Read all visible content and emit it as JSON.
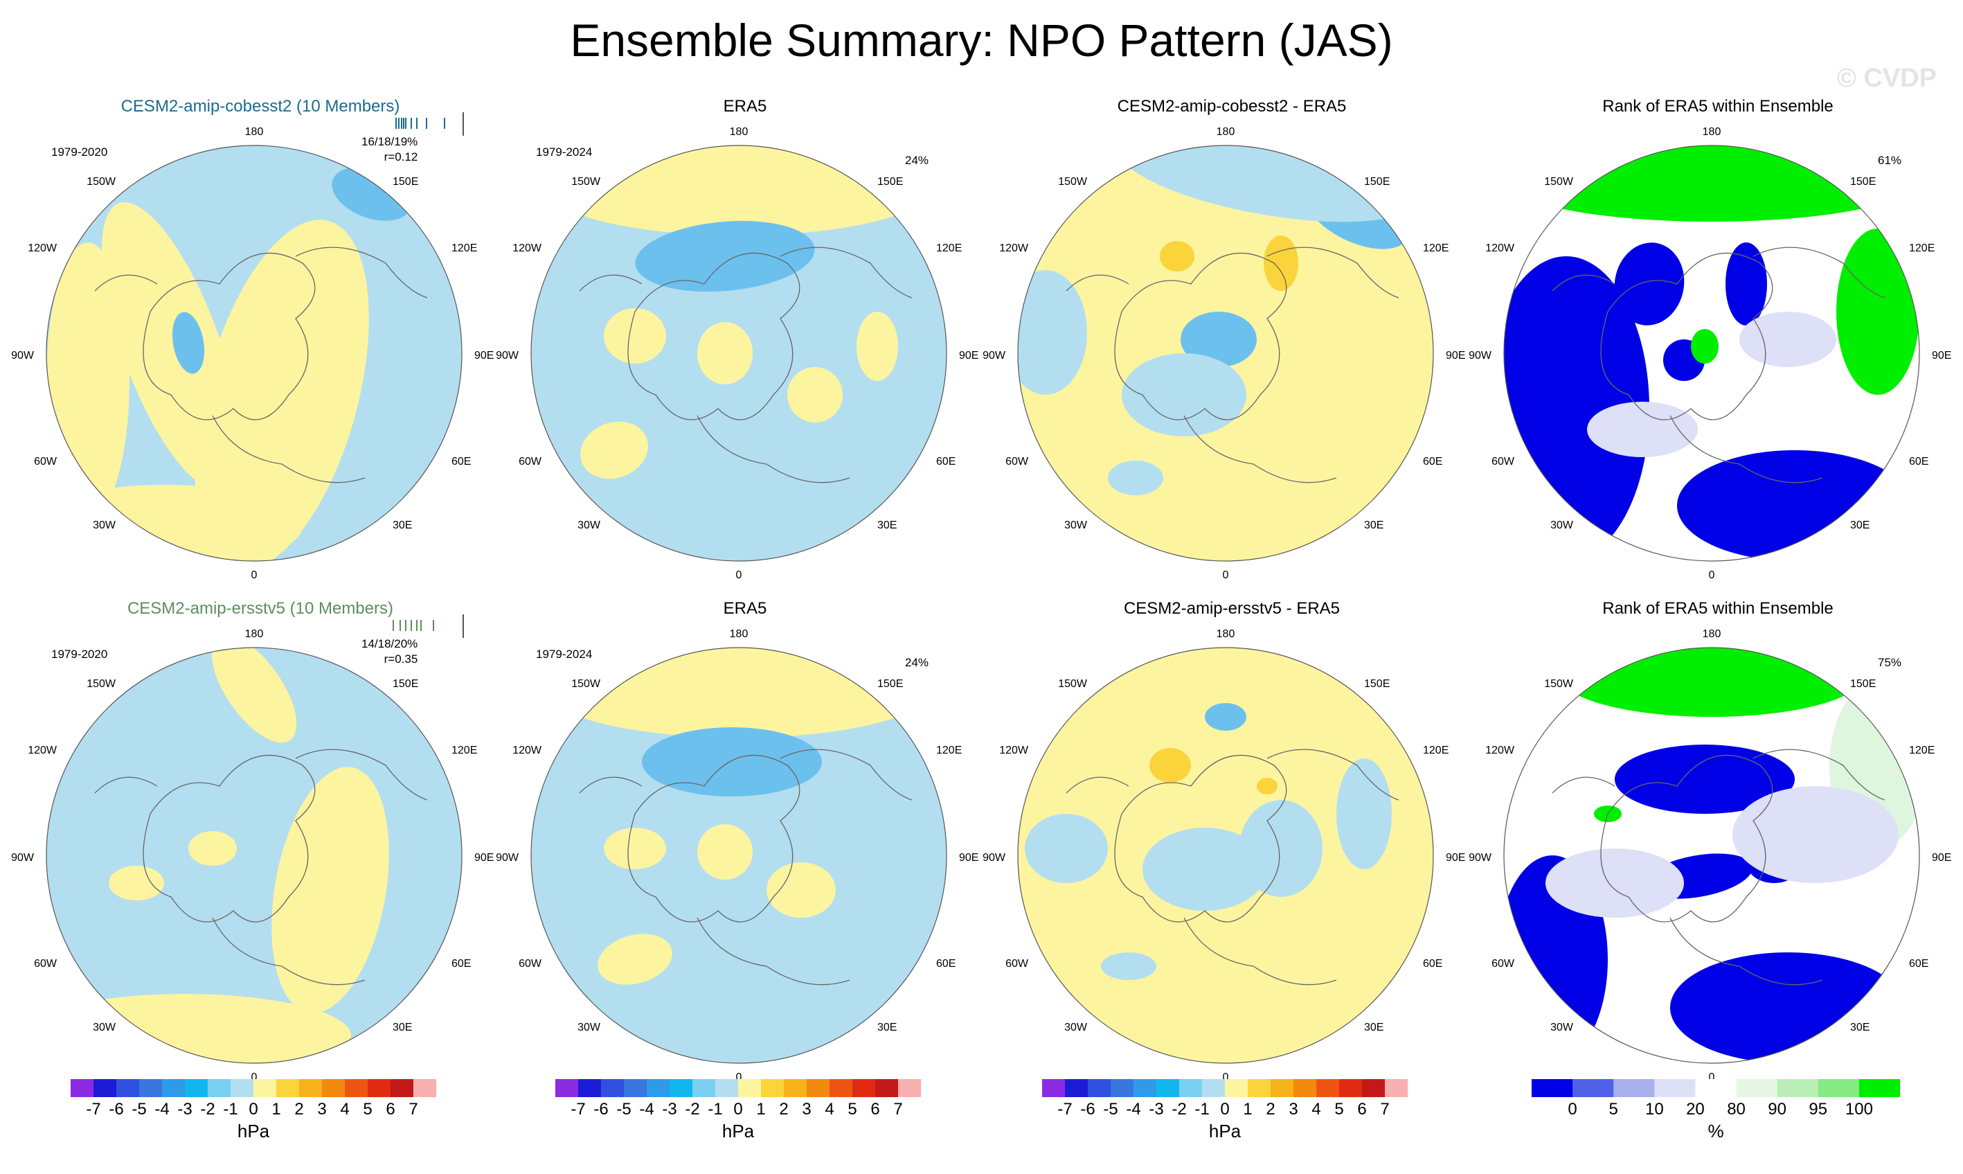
{
  "figure": {
    "title": "Ensemble Summary: NPO Pattern (JAS)",
    "watermark": "© CVDP"
  },
  "colors": {
    "neg1": "#b3def0",
    "neg2": "#6cc0ee",
    "pos1": "#fdf4a0",
    "pos2": "#fad43a",
    "rank_lo": "#0000e6",
    "rank_mid": "#dde0f6",
    "rank_hi": "#00ee00",
    "rank_hi2": "#dff6de",
    "ocean_line": "#666666"
  },
  "lon_labels": {
    "top": "180",
    "bottom": "0",
    "l1": "150W",
    "l2": "120W",
    "l3": "90W",
    "l4": "60W",
    "l5": "30W",
    "r1": "150E",
    "r2": "120E",
    "r3": "90E",
    "r4": "60E",
    "r5": "30E"
  },
  "panels": [
    {
      "title": "CESM2-amip-cobesst2 (10 Members)",
      "title_color": "#1a6b8f",
      "period": "1979-2020",
      "stats1": "16/18/19%",
      "stats2": "r=0.12"
    },
    {
      "title": "ERA5",
      "period": "1979-2024",
      "pct": "24%"
    },
    {
      "title": "CESM2-amip-cobesst2 - ERA5"
    },
    {
      "title": "Rank of ERA5 within Ensemble",
      "pct": "61%"
    },
    {
      "title": "CESM2-amip-ersstv5 (10 Members)",
      "title_color": "#5e8d5e",
      "period": "1979-2020",
      "stats1": "14/18/20%",
      "stats2": "r=0.35"
    },
    {
      "title": "ERA5",
      "period": "1979-2024",
      "pct": "24%"
    },
    {
      "title": "CESM2-amip-ersstv5 - ERA5"
    },
    {
      "title": "Rank of ERA5 within Ensemble",
      "pct": "75%"
    }
  ],
  "colorbars": {
    "hpa": {
      "labels": [
        "-7",
        "-6",
        "-5",
        "-4",
        "-3",
        "-2",
        "-1",
        "0",
        "1",
        "2",
        "3",
        "4",
        "5",
        "6",
        "7"
      ],
      "unit": "hPa",
      "colors": [
        "#8a2be2",
        "#1c1cd6",
        "#3050e0",
        "#3a76df",
        "#2f9ae8",
        "#12b6ee",
        "#7ad0f0",
        "#b3def0",
        "#fdf4a0",
        "#fad43a",
        "#f8b21a",
        "#f38a10",
        "#ef5512",
        "#e02a12",
        "#c31818",
        "#f8b0b0"
      ]
    },
    "rank": {
      "labels": [
        "0",
        "5",
        "10",
        "20",
        "80",
        "90",
        "95",
        "100"
      ],
      "unit": "%",
      "colors": [
        "#0000e6",
        "#5060e8",
        "#a8b0ee",
        "#dde0f6",
        "#ffffff",
        "#e6f6e4",
        "#b9efb6",
        "#86ea84",
        "#00ee00"
      ]
    }
  }
}
